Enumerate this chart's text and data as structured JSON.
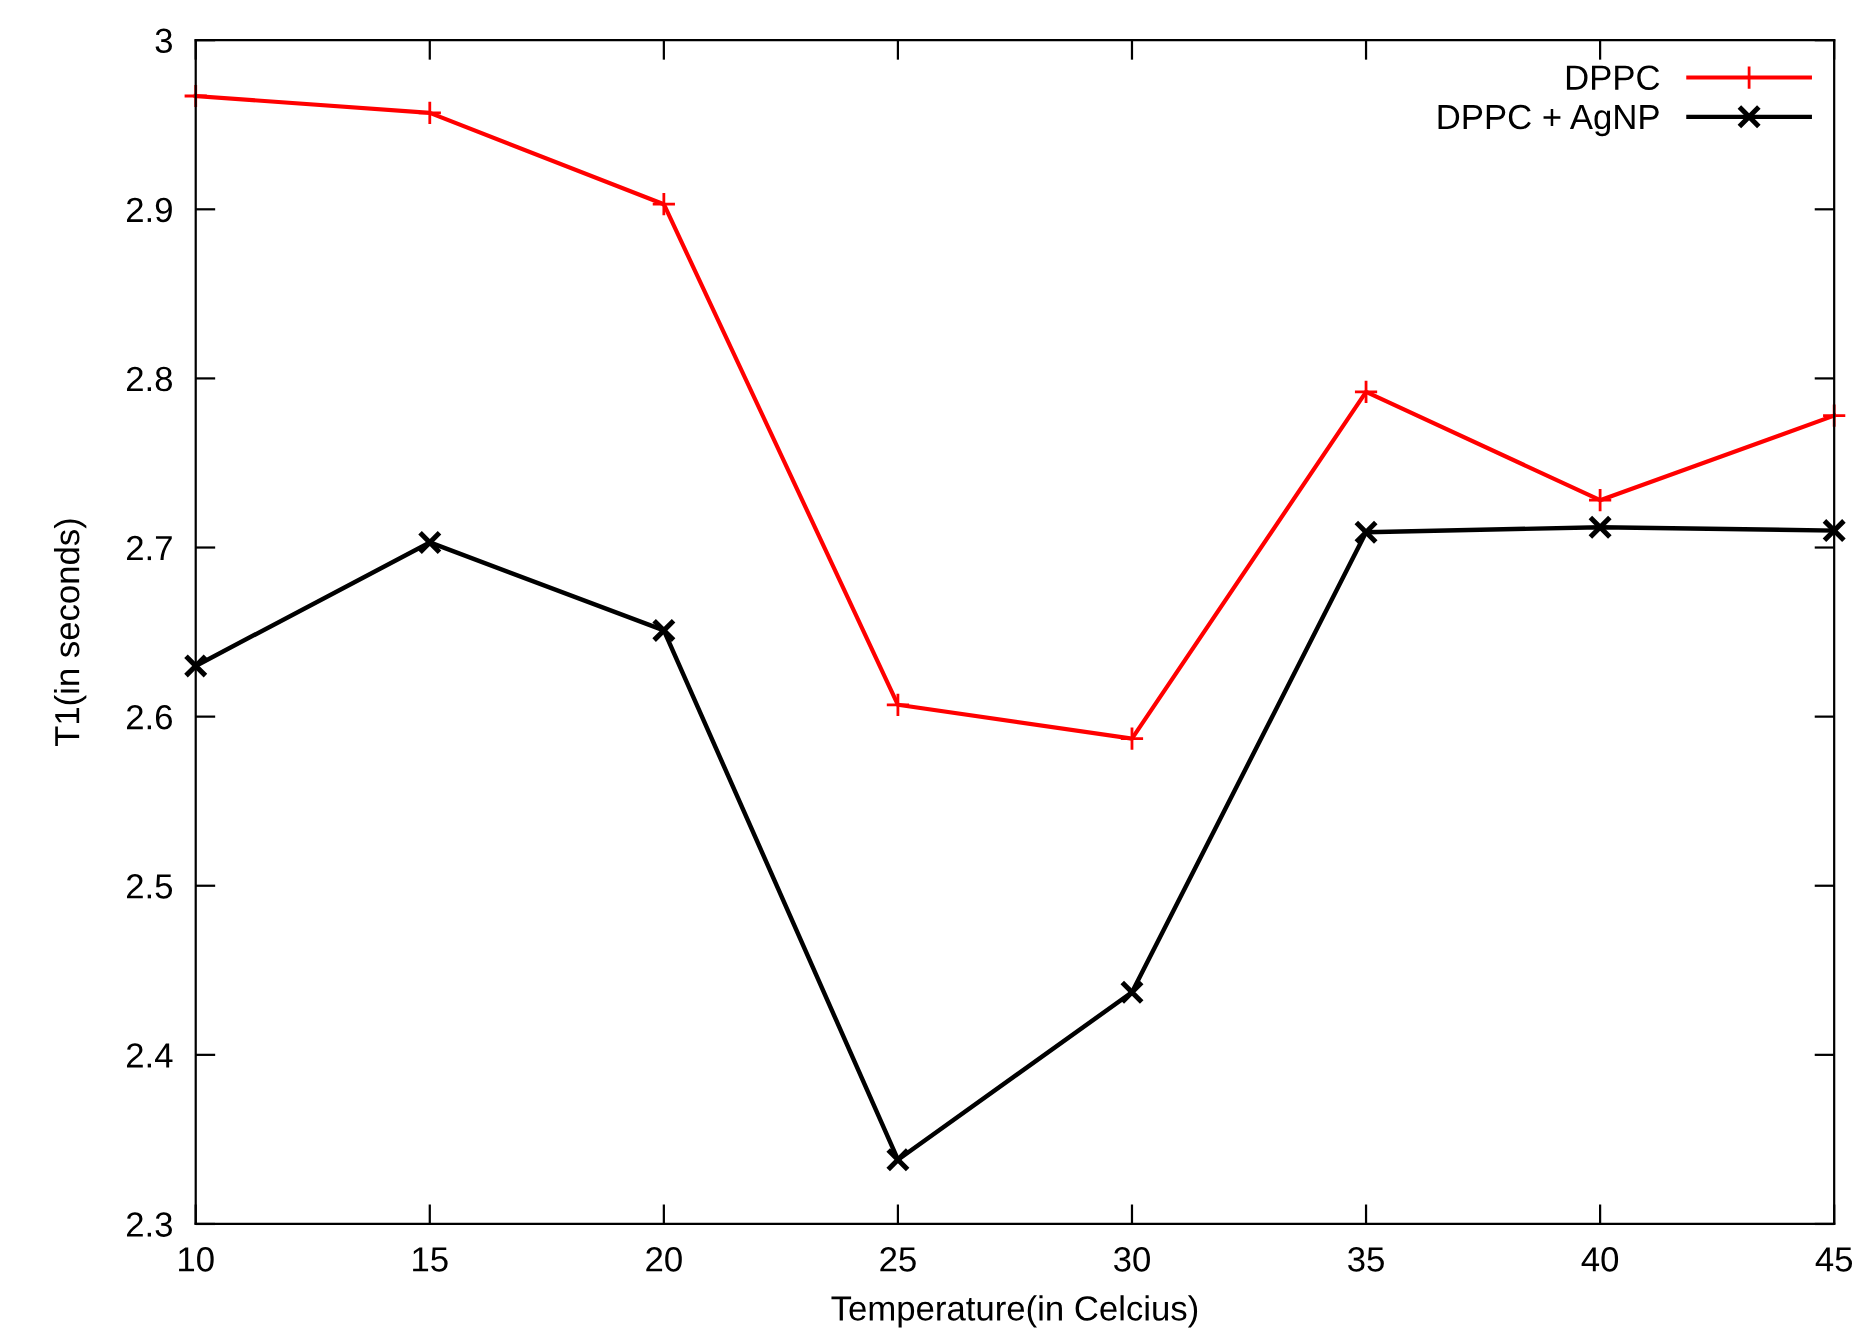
{
  "chart_data": {
    "type": "line",
    "xlabel": "Temperature(in Celcius)",
    "ylabel": "T1(in seconds)",
    "x": [
      10,
      15,
      20,
      25,
      30,
      35,
      40,
      45
    ],
    "series": [
      {
        "name": "DPPC",
        "color": "#ff0000",
        "marker": "plus",
        "values": [
          2.967,
          2.957,
          2.903,
          2.607,
          2.587,
          2.792,
          2.728,
          2.778
        ]
      },
      {
        "name": "DPPC + AgNP",
        "color": "#000000",
        "marker": "cross",
        "values": [
          2.63,
          2.703,
          2.651,
          2.338,
          2.437,
          2.709,
          2.712,
          2.71
        ]
      }
    ],
    "xlim": [
      10,
      45
    ],
    "xticks": [
      10,
      15,
      20,
      25,
      30,
      35,
      40,
      45
    ],
    "ylim": [
      2.3,
      3
    ],
    "yticks": [
      2.3,
      2.4,
      2.5,
      2.6,
      2.7,
      2.8,
      2.9,
      3
    ],
    "grid": false,
    "legend": "top right",
    "line_style": "solid"
  }
}
